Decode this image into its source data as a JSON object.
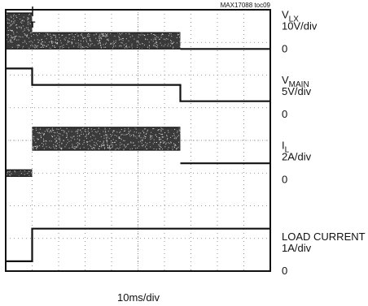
{
  "chart_data": {
    "type": "line",
    "plot_id": "MAX17088 toc09",
    "xlabel": "10ms/div",
    "x_divisions": 10,
    "y_divisions": 8,
    "trigger_marker": "T",
    "grid": "dotted",
    "channels": [
      {
        "id": "vlx",
        "name_main": "V",
        "name_sub": "LX",
        "scale": "10V/div",
        "zero_label": "0",
        "zero_level_div": 6.8,
        "style": "switching",
        "segments": [
          {
            "t0": 0.0,
            "t1": 1.0,
            "low_div": 6.8,
            "high_div": 7.9
          },
          {
            "t0": 1.0,
            "t1": 6.6,
            "low_div": 6.8,
            "high_div": 7.3
          },
          {
            "t0": 6.6,
            "t1": 10.0,
            "level_div": 6.8
          }
        ]
      },
      {
        "id": "vmain",
        "name_main": "V",
        "name_sub": "MAIN",
        "scale": "5V/div",
        "zero_label": "0",
        "zero_level_div": 4.8,
        "style": "steps",
        "points": [
          [
            0.0,
            6.2
          ],
          [
            1.0,
            6.2
          ],
          [
            1.0,
            5.7
          ],
          [
            6.6,
            5.7
          ],
          [
            6.6,
            5.2
          ],
          [
            10.0,
            5.2
          ]
        ]
      },
      {
        "id": "il",
        "name_main": "I",
        "name_sub": "L",
        "scale": "2A/div",
        "zero_label": "0",
        "zero_level_div": 2.8,
        "style": "switching",
        "segments": [
          {
            "t0": 0.0,
            "t1": 1.0,
            "low_div": 2.9,
            "high_div": 3.1
          },
          {
            "t0": 1.0,
            "t1": 6.6,
            "low_div": 3.7,
            "high_div": 4.4
          },
          {
            "t0": 6.6,
            "t1": 10.0,
            "level_div": 3.3
          }
        ]
      },
      {
        "id": "load",
        "name_main": "LOAD CURRENT",
        "name_sub": "",
        "scale": "1A/div",
        "zero_label": "0",
        "zero_level_div": 0.0,
        "style": "steps",
        "points": [
          [
            0.0,
            0.3
          ],
          [
            1.0,
            0.3
          ],
          [
            1.0,
            1.3
          ],
          [
            10.0,
            1.3
          ]
        ]
      }
    ]
  }
}
